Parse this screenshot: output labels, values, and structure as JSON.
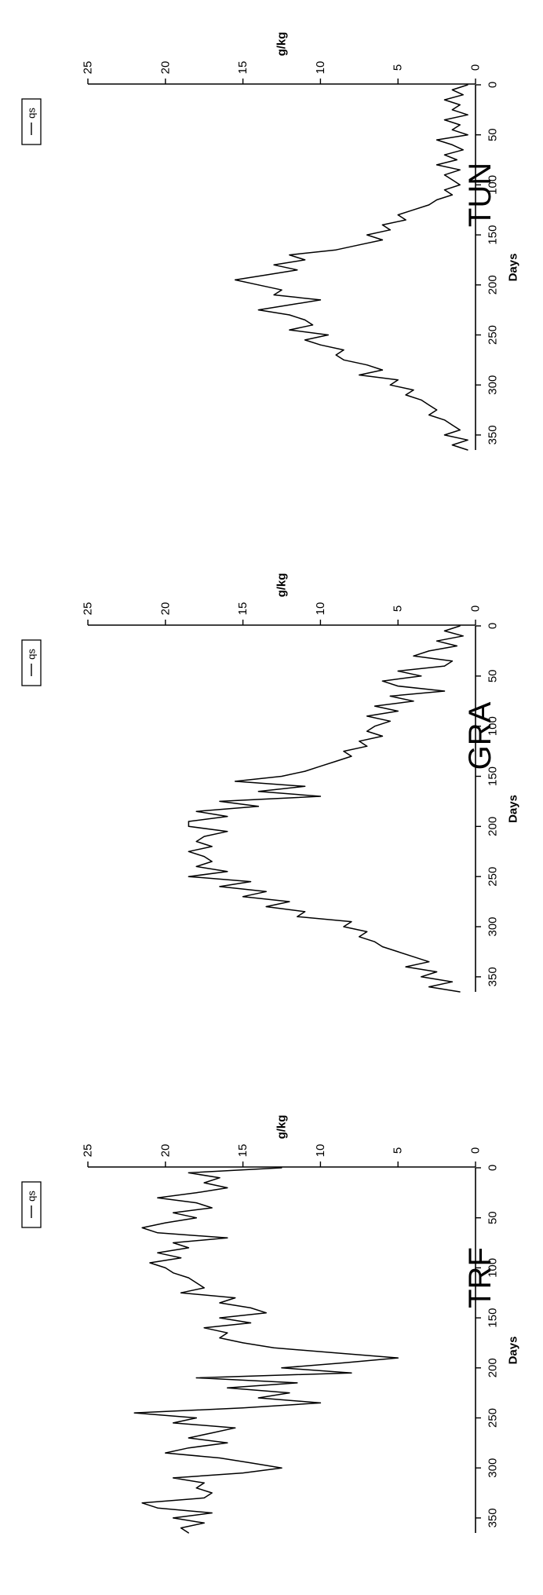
{
  "chart_data": [
    {
      "type": "line",
      "title": "TRF",
      "xlabel": "Days",
      "ylabel": "g/kg",
      "xlim": [
        0,
        365
      ],
      "ylim": [
        0,
        25
      ],
      "x_ticks": [
        0,
        50,
        100,
        150,
        200,
        250,
        300,
        350
      ],
      "y_ticks": [
        0,
        5,
        10,
        15,
        20,
        25
      ],
      "legend": [
        "qs"
      ],
      "grid": false,
      "series": [
        {
          "name": "qs",
          "x": [
            0,
            5,
            10,
            15,
            20,
            25,
            30,
            35,
            40,
            45,
            50,
            55,
            60,
            65,
            70,
            75,
            80,
            85,
            90,
            95,
            100,
            105,
            110,
            115,
            120,
            125,
            130,
            135,
            140,
            145,
            150,
            155,
            160,
            165,
            170,
            175,
            180,
            185,
            190,
            195,
            200,
            205,
            210,
            215,
            220,
            225,
            230,
            235,
            240,
            245,
            250,
            255,
            260,
            265,
            270,
            275,
            280,
            285,
            290,
            295,
            300,
            305,
            310,
            315,
            320,
            325,
            330,
            335,
            340,
            345,
            350,
            355,
            360,
            365
          ],
          "y": [
            12.5,
            18.5,
            16.5,
            17.5,
            16.0,
            18.0,
            20.5,
            18.0,
            17.0,
            19.5,
            18.0,
            20.0,
            21.5,
            20.5,
            16.0,
            19.5,
            18.5,
            20.5,
            19.0,
            21.0,
            20.0,
            19.5,
            18.5,
            18.0,
            17.5,
            19.0,
            15.5,
            16.5,
            14.5,
            13.5,
            16.5,
            14.5,
            17.5,
            16.0,
            16.5,
            15.0,
            13.0,
            9.0,
            5.0,
            8.5,
            12.5,
            8.0,
            18.0,
            11.5,
            16.0,
            12.0,
            14.0,
            10.0,
            15.0,
            22.0,
            18.0,
            19.5,
            15.5,
            17.0,
            18.5,
            16.0,
            18.5,
            20.0,
            16.5,
            14.5,
            12.5,
            15.0,
            19.5,
            17.5,
            18.0,
            17.0,
            17.5,
            21.5,
            20.5,
            17.0,
            19.5,
            17.5,
            19.0,
            18.5
          ]
        }
      ]
    },
    {
      "type": "line",
      "title": "GRA",
      "xlabel": "Days",
      "ylabel": "g/kg",
      "xlim": [
        0,
        365
      ],
      "ylim": [
        0,
        25
      ],
      "x_ticks": [
        0,
        50,
        100,
        150,
        200,
        250,
        300,
        350
      ],
      "y_ticks": [
        0,
        5,
        10,
        15,
        20,
        25
      ],
      "legend": [
        "qs"
      ],
      "grid": false,
      "series": [
        {
          "name": "qs",
          "x": [
            0,
            5,
            10,
            15,
            20,
            25,
            30,
            35,
            40,
            45,
            50,
            55,
            60,
            65,
            70,
            75,
            80,
            85,
            90,
            95,
            100,
            105,
            110,
            115,
            120,
            125,
            130,
            135,
            140,
            145,
            150,
            155,
            160,
            165,
            170,
            175,
            180,
            185,
            190,
            195,
            200,
            205,
            210,
            215,
            220,
            225,
            230,
            235,
            240,
            245,
            250,
            255,
            260,
            265,
            270,
            275,
            280,
            285,
            290,
            295,
            300,
            305,
            310,
            315,
            320,
            325,
            330,
            335,
            340,
            345,
            350,
            355,
            360,
            365
          ],
          "y": [
            1.0,
            2.0,
            0.8,
            2.5,
            1.2,
            3.0,
            4.0,
            1.5,
            2.0,
            5.0,
            3.5,
            6.0,
            5.0,
            2.0,
            5.5,
            4.0,
            6.5,
            5.0,
            7.0,
            5.5,
            6.5,
            7.0,
            6.0,
            7.5,
            7.0,
            8.5,
            8.0,
            9.0,
            10.0,
            11.0,
            12.5,
            15.5,
            11.0,
            14.0,
            10.0,
            16.5,
            14.0,
            18.0,
            16.0,
            18.5,
            18.5,
            16.0,
            17.5,
            18.0,
            17.0,
            18.5,
            17.5,
            17.0,
            18.0,
            16.0,
            18.5,
            14.5,
            16.5,
            13.5,
            15.0,
            12.0,
            13.5,
            11.0,
            11.5,
            8.0,
            8.5,
            7.0,
            7.5,
            6.5,
            6.0,
            5.0,
            4.0,
            3.0,
            4.5,
            2.5,
            3.5,
            1.5,
            3.0,
            1.0
          ]
        }
      ]
    },
    {
      "type": "line",
      "title": "TUN",
      "xlabel": "Days",
      "ylabel": "g/kg",
      "xlim": [
        0,
        365
      ],
      "ylim": [
        0,
        25
      ],
      "x_ticks": [
        0,
        50,
        100,
        150,
        200,
        250,
        300,
        350
      ],
      "y_ticks": [
        0,
        5,
        10,
        15,
        20,
        25
      ],
      "legend": [
        "qs"
      ],
      "grid": false,
      "series": [
        {
          "name": "qs",
          "x": [
            0,
            5,
            10,
            15,
            20,
            25,
            30,
            35,
            40,
            45,
            50,
            55,
            60,
            65,
            70,
            75,
            80,
            85,
            90,
            95,
            100,
            105,
            110,
            115,
            120,
            125,
            130,
            135,
            140,
            145,
            150,
            155,
            160,
            165,
            170,
            175,
            180,
            185,
            190,
            195,
            200,
            205,
            210,
            215,
            220,
            225,
            230,
            235,
            240,
            245,
            250,
            255,
            260,
            265,
            270,
            275,
            280,
            285,
            290,
            295,
            300,
            305,
            310,
            315,
            320,
            325,
            330,
            335,
            340,
            345,
            350,
            355,
            360,
            365
          ],
          "y": [
            0.5,
            1.5,
            0.8,
            2.0,
            1.0,
            1.5,
            0.5,
            2.0,
            1.0,
            1.5,
            0.5,
            2.5,
            1.5,
            0.8,
            2.0,
            1.2,
            2.5,
            1.0,
            2.0,
            1.5,
            1.0,
            2.0,
            1.5,
            2.5,
            3.0,
            4.0,
            5.0,
            4.5,
            6.0,
            5.5,
            7.0,
            6.0,
            7.5,
            9.0,
            12.0,
            11.0,
            13.0,
            11.5,
            13.5,
            15.5,
            14.0,
            12.5,
            13.0,
            10.0,
            12.0,
            14.0,
            12.0,
            11.0,
            10.5,
            12.0,
            9.5,
            11.0,
            10.0,
            8.5,
            9.0,
            8.5,
            7.0,
            6.0,
            7.5,
            5.0,
            5.5,
            4.0,
            4.5,
            3.5,
            3.0,
            2.5,
            3.0,
            2.0,
            1.5,
            1.0,
            2.0,
            0.5,
            1.5,
            0.5
          ]
        }
      ]
    }
  ]
}
